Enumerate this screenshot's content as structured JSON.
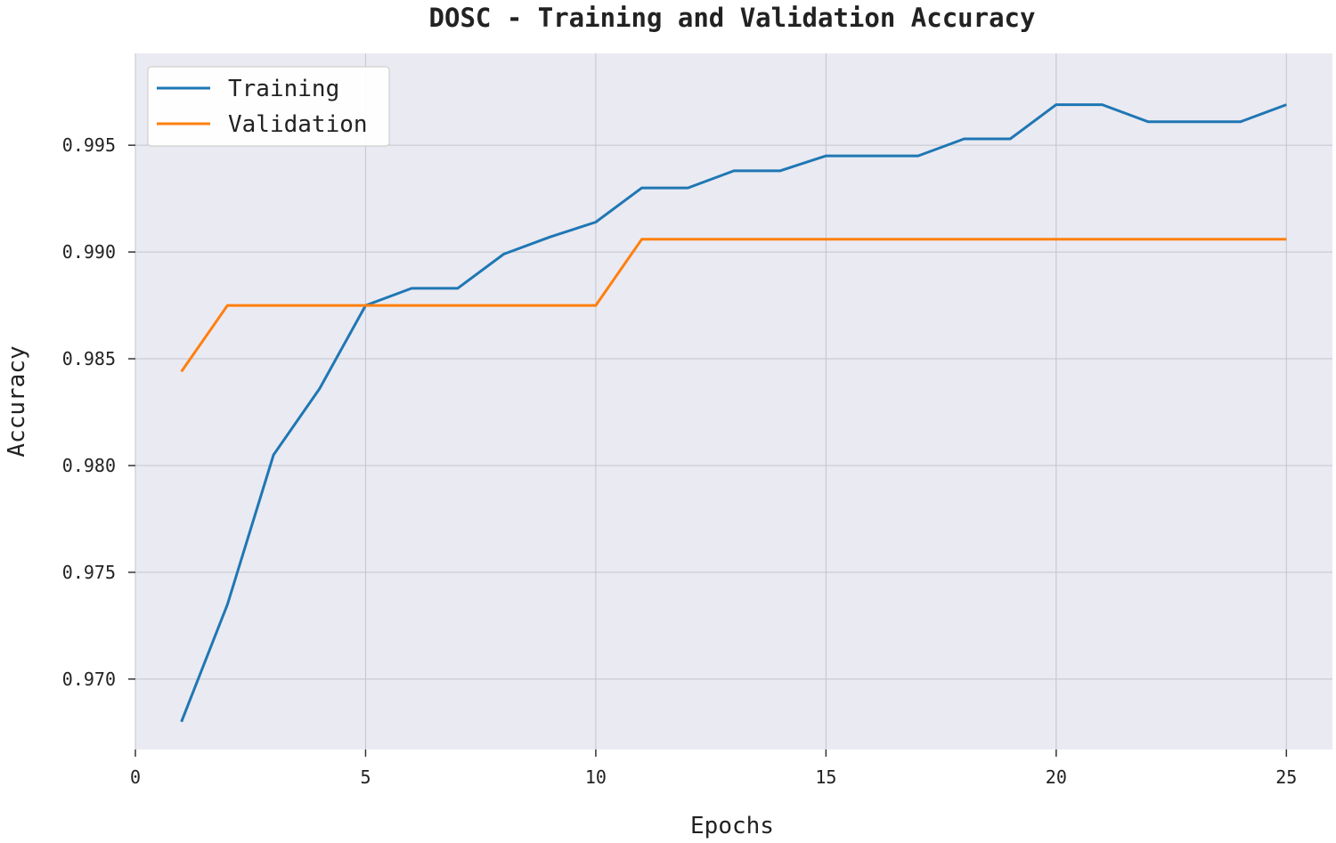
{
  "chart_data": {
    "type": "line",
    "title": "DOSC - Training and Validation Accuracy",
    "xlabel": "Epochs",
    "ylabel": "Accuracy",
    "xlim": [
      0,
      26
    ],
    "ylim": [
      0.9667,
      0.9993
    ],
    "xticks": [
      0,
      5,
      10,
      15,
      20,
      25
    ],
    "xtick_labels": [
      "0",
      "5",
      "10",
      "15",
      "20",
      "25"
    ],
    "yticks": [
      0.97,
      0.975,
      0.98,
      0.985,
      0.99,
      0.995
    ],
    "ytick_labels": [
      "0.970",
      "0.975",
      "0.980",
      "0.985",
      "0.990",
      "0.995"
    ],
    "grid": true,
    "legend_position": "top-left",
    "background": "#eaeaf2",
    "grid_color": "#c4c4cc",
    "x": [
      1,
      2,
      3,
      4,
      5,
      6,
      7,
      8,
      9,
      10,
      11,
      12,
      13,
      14,
      15,
      16,
      17,
      18,
      19,
      20,
      21,
      22,
      23,
      24,
      25
    ],
    "series": [
      {
        "name": "Training",
        "color": "#1f77b4",
        "values": [
          0.968,
          0.9735,
          0.9805,
          0.9836,
          0.9875,
          0.9883,
          0.9883,
          0.9899,
          0.9907,
          0.9914,
          0.993,
          0.993,
          0.9938,
          0.9938,
          0.9945,
          0.9945,
          0.9945,
          0.9953,
          0.9953,
          0.9969,
          0.9969,
          0.9961,
          0.9961,
          0.9961,
          0.9969
        ]
      },
      {
        "name": "Validation",
        "color": "#ff7f0e",
        "values": [
          0.9844,
          0.9875,
          0.9875,
          0.9875,
          0.9875,
          0.9875,
          0.9875,
          0.9875,
          0.9875,
          0.9875,
          0.9906,
          0.9906,
          0.9906,
          0.9906,
          0.9906,
          0.9906,
          0.9906,
          0.9906,
          0.9906,
          0.9906,
          0.9906,
          0.9906,
          0.9906,
          0.9906,
          0.9906
        ]
      }
    ]
  }
}
